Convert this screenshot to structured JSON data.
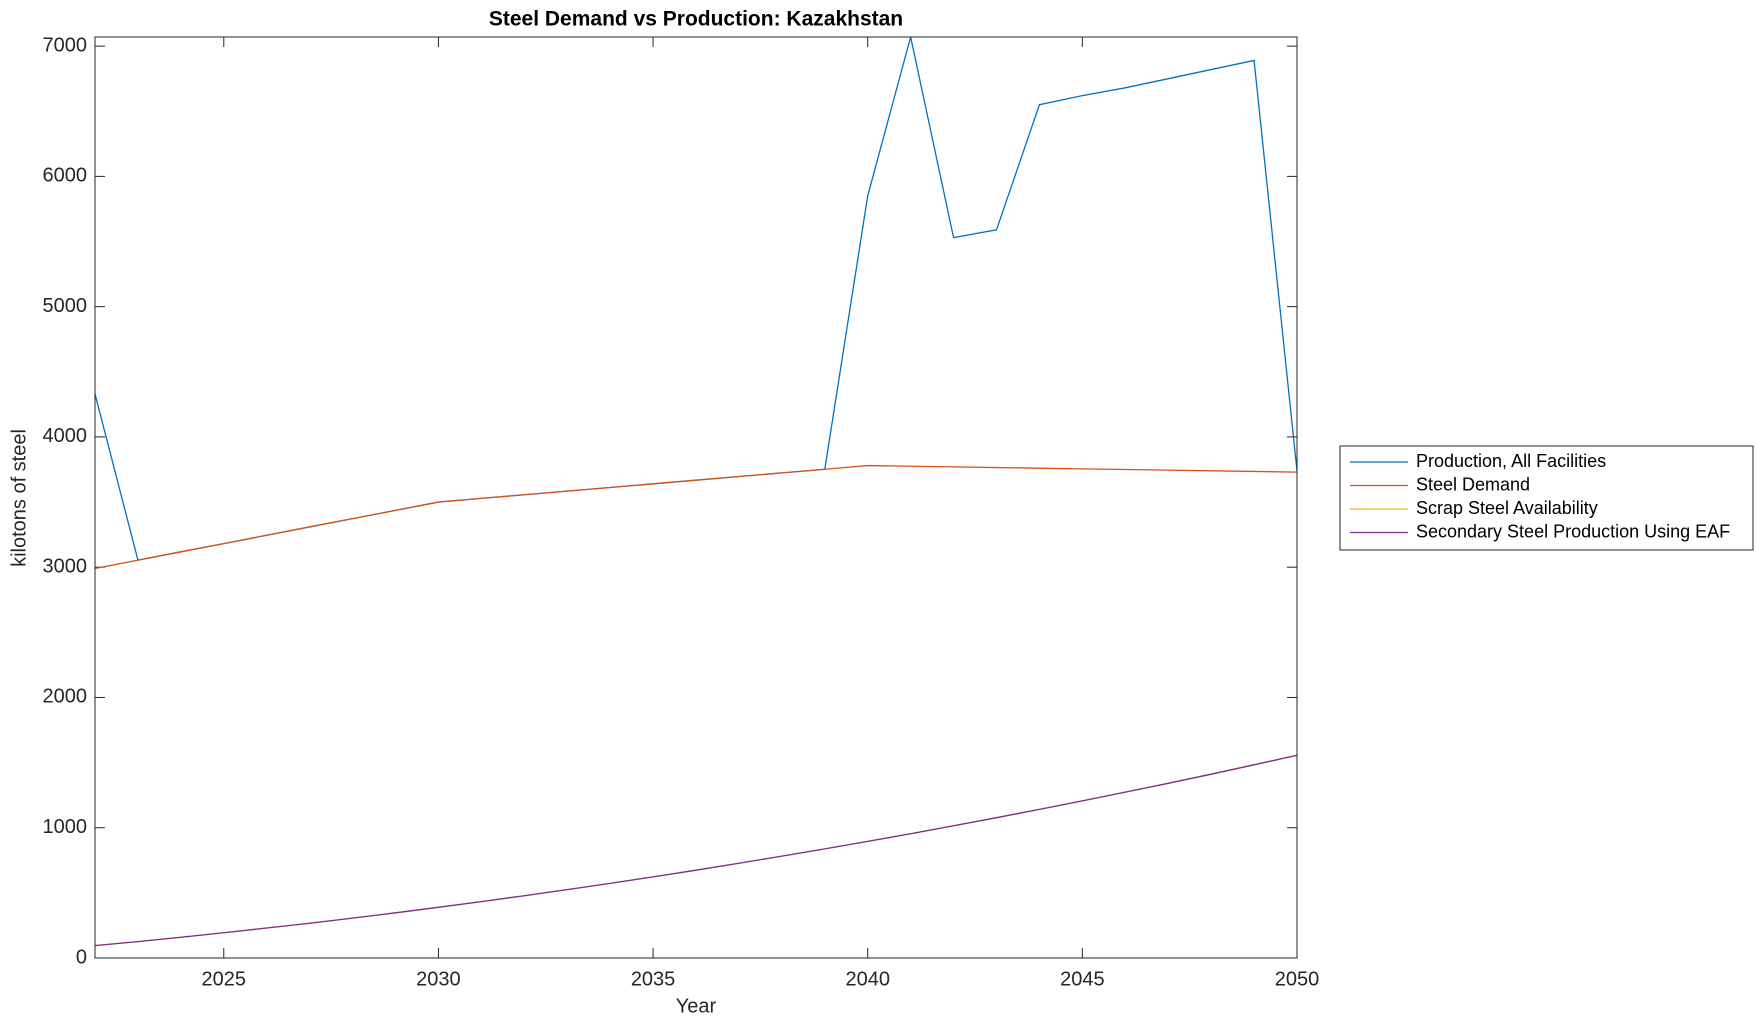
{
  "chart_data": {
    "type": "line",
    "title": "Steel Demand vs Production: Kazakhstan",
    "x_label": "Year",
    "y_label": "kilotons of steel",
    "x": [
      2022,
      2023,
      2024,
      2025,
      2026,
      2027,
      2028,
      2029,
      2030,
      2031,
      2032,
      2033,
      2034,
      2035,
      2036,
      2037,
      2038,
      2039,
      2040,
      2041,
      2042,
      2043,
      2044,
      2045,
      2046,
      2047,
      2048,
      2049,
      2050
    ],
    "series": [
      {
        "name": "Production, All Facilities",
        "color": "#0072BD",
        "values": [
          4330,
          3054,
          3118,
          3181,
          3245,
          3309,
          3373,
          3436,
          3500,
          3528,
          3556,
          3584,
          3612,
          3640,
          3668,
          3696,
          3724,
          3752,
          5850,
          7070,
          5530,
          5590,
          6550,
          6620,
          6680,
          6750,
          6820,
          6890,
          3740
        ]
      },
      {
        "name": "Steel Demand",
        "color": "#D95319",
        "values": [
          2990,
          3054,
          3118,
          3181,
          3245,
          3309,
          3373,
          3436,
          3500,
          3528,
          3556,
          3584,
          3612,
          3640,
          3668,
          3696,
          3724,
          3752,
          3780,
          3775,
          3770,
          3765,
          3760,
          3755,
          3750,
          3745,
          3740,
          3735,
          3730
        ]
      },
      {
        "name": "Scrap Steel Availability",
        "color": "#EDB120",
        "values": [
          95,
          126,
          159,
          194,
          230,
          267,
          306,
          347,
          389,
          433,
          478,
          525,
          573,
          623,
          674,
          727,
          782,
          838,
          895,
          954,
          1015,
          1077,
          1141,
          1206,
          1273,
          1341,
          1411,
          1483,
          1556
        ]
      },
      {
        "name": "Secondary Steel Production Using EAF",
        "color": "#7E2F8E",
        "values": [
          95,
          126,
          159,
          194,
          230,
          267,
          306,
          347,
          389,
          433,
          478,
          525,
          573,
          623,
          674,
          727,
          782,
          838,
          895,
          954,
          1015,
          1077,
          1141,
          1206,
          1273,
          1341,
          1411,
          1483,
          1556
        ]
      }
    ],
    "xlim": [
      2022,
      2050
    ],
    "xticks": [
      2025,
      2030,
      2035,
      2040,
      2045,
      2050
    ],
    "ylim": [
      0,
      7070
    ],
    "yticks": [
      0,
      1000,
      2000,
      3000,
      4000,
      5000,
      6000,
      7000
    ],
    "grid": false,
    "legend": "eastoutside"
  }
}
